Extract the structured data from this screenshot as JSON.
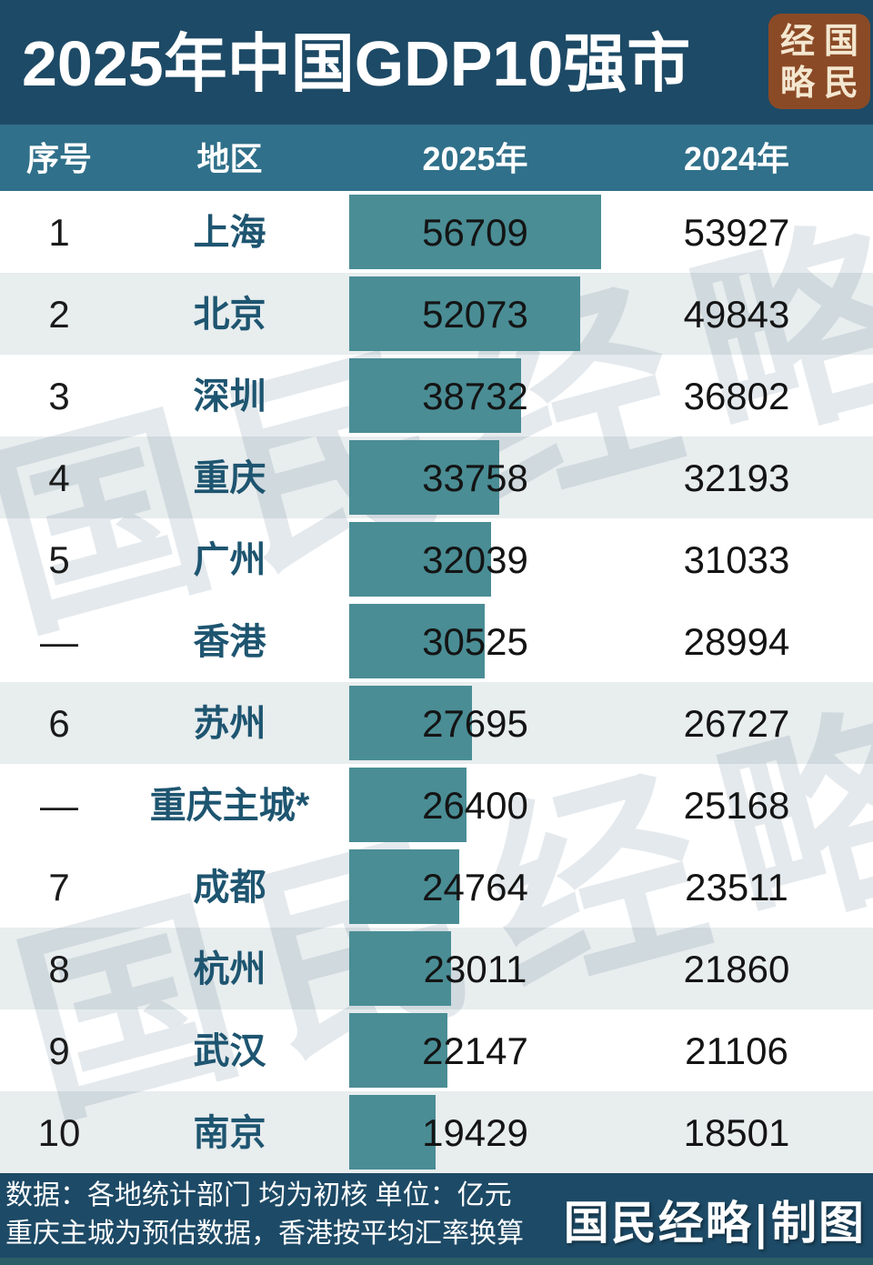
{
  "header": {
    "title": "2025年中国GDP10强市",
    "seal": {
      "text": "国民经略",
      "grid": [
        "经",
        "国",
        "略",
        "民"
      ],
      "bg_color": "#8B4A26",
      "text_color": "#F4E7D0"
    }
  },
  "columns": {
    "rank": "序号",
    "region": "地区",
    "y2025": "2025年",
    "y2024": "2024年"
  },
  "rows": [
    {
      "rank": "1",
      "city": "上海",
      "v2025": 56709,
      "v2024": 53927
    },
    {
      "rank": "2",
      "city": "北京",
      "v2025": 52073,
      "v2024": 49843
    },
    {
      "rank": "3",
      "city": "深圳",
      "v2025": 38732,
      "v2024": 36802
    },
    {
      "rank": "4",
      "city": "重庆",
      "v2025": 33758,
      "v2024": 32193
    },
    {
      "rank": "5",
      "city": "广州",
      "v2025": 32039,
      "v2024": 31033
    },
    {
      "rank": "—",
      "city": "香港",
      "v2025": 30525,
      "v2024": 28994
    },
    {
      "rank": "6",
      "city": "苏州",
      "v2025": 27695,
      "v2024": 26727
    },
    {
      "rank": "—",
      "city": "重庆主城*",
      "v2025": 26400,
      "v2024": 25168
    },
    {
      "rank": "7",
      "city": "成都",
      "v2025": 24764,
      "v2024": 23511
    },
    {
      "rank": "8",
      "city": "杭州",
      "v2025": 23011,
      "v2024": 21860
    },
    {
      "rank": "9",
      "city": "武汉",
      "v2025": 22147,
      "v2024": 21106
    },
    {
      "rank": "10",
      "city": "南京",
      "v2025": 19429,
      "v2024": 18501
    }
  ],
  "chart_data": {
    "type": "bar",
    "orientation": "horizontal",
    "title": "2025年中国GDP10强市",
    "unit": "亿元",
    "categories": [
      "上海",
      "北京",
      "深圳",
      "重庆",
      "广州",
      "香港",
      "苏州",
      "重庆主城*",
      "成都",
      "杭州",
      "武汉",
      "南京"
    ],
    "ranks": [
      "1",
      "2",
      "3",
      "4",
      "5",
      "—",
      "6",
      "—",
      "7",
      "8",
      "9",
      "10"
    ],
    "series": [
      {
        "name": "2025年",
        "values": [
          56709,
          52073,
          38732,
          33758,
          32039,
          30525,
          27695,
          26400,
          24764,
          23011,
          22147,
          19429
        ]
      },
      {
        "name": "2024年",
        "values": [
          53927,
          49843,
          36802,
          32193,
          31033,
          28994,
          26727,
          25168,
          23511,
          21860,
          21106,
          18501
        ]
      }
    ],
    "bars_shown_for_series": "2025年",
    "xlim": [
      0,
      56709
    ],
    "grid": false,
    "legend": false
  },
  "watermark": {
    "text": "国民经略"
  },
  "footer": {
    "line1": "数据：各地统计部门 均为初核 单位：亿元",
    "line2": "重庆主城为预估数据，香港按平均汇率换算",
    "brand": "国民经略|制图"
  },
  "colors": {
    "header_bg": "#1D4A66",
    "column_band_bg": "#30708A",
    "bar": "#4A8D95",
    "row_alt_bg": "#E8EDEE",
    "city_text": "#1E5570",
    "value_text": "#141414",
    "footer_bg": "#1D4A66",
    "bottom_strip": "#2B5F68",
    "seal_bg": "#8B4A26",
    "seal_text": "#F4E7D0",
    "watermark": "rgba(31,78,107,0.12)"
  }
}
